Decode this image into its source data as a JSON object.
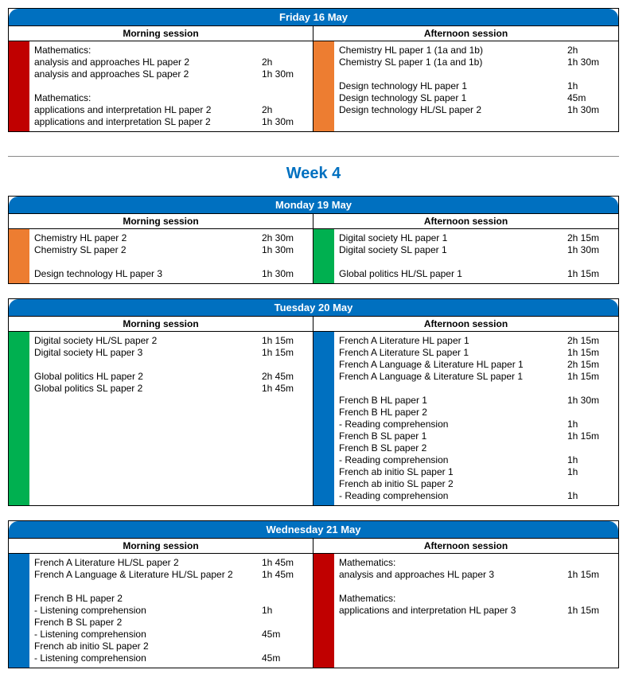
{
  "colors": {
    "header_bg": "#0070c0",
    "header_fg": "#ffffff",
    "red": "#c00000",
    "orange": "#ed7d31",
    "green": "#00b050",
    "blue": "#0070c0"
  },
  "labels": {
    "morning": "Morning session",
    "afternoon": "Afternoon session"
  },
  "week_title": "Week 4",
  "days": [
    {
      "id": "fri16",
      "title": "Friday 16 May",
      "morning": {
        "color": "red",
        "items": [
          {
            "text": "Mathematics:",
            "dur": ""
          },
          {
            "text": "analysis and approaches HL paper 2",
            "dur": "2h"
          },
          {
            "text": "analysis and approaches SL paper 2",
            "dur": "1h 30m"
          },
          {
            "text": "",
            "dur": ""
          },
          {
            "text": "Mathematics:",
            "dur": ""
          },
          {
            "text": "applications and interpretation HL paper 2",
            "dur": "2h"
          },
          {
            "text": "applications and interpretation SL paper 2",
            "dur": "1h 30m"
          }
        ]
      },
      "afternoon": {
        "color": "orange",
        "items": [
          {
            "text": "Chemistry HL paper 1 (1a and 1b)",
            "dur": "2h"
          },
          {
            "text": "Chemistry SL paper 1 (1a and 1b)",
            "dur": "1h 30m"
          },
          {
            "text": "",
            "dur": ""
          },
          {
            "text": "Design technology HL paper 1",
            "dur": "1h"
          },
          {
            "text": "Design technology SL paper 1",
            "dur": "45m"
          },
          {
            "text": "Design technology HL/SL paper 2",
            "dur": "1h 30m"
          }
        ]
      }
    },
    {
      "id": "mon19",
      "title": "Monday 19 May",
      "morning": {
        "color": "orange",
        "items": [
          {
            "text": "Chemistry HL paper 2",
            "dur": "2h 30m"
          },
          {
            "text": "Chemistry SL paper 2",
            "dur": "1h 30m"
          },
          {
            "text": "",
            "dur": ""
          },
          {
            "text": "Design technology HL paper 3",
            "dur": "1h 30m"
          }
        ]
      },
      "afternoon": {
        "color": "green",
        "items": [
          {
            "text": "Digital society HL paper 1",
            "dur": "2h 15m"
          },
          {
            "text": "Digital society SL paper 1",
            "dur": "1h 30m"
          },
          {
            "text": "",
            "dur": ""
          },
          {
            "text": "Global politics HL/SL paper 1",
            "dur": "1h 15m"
          }
        ]
      }
    },
    {
      "id": "tue20",
      "title": "Tuesday 20 May",
      "morning": {
        "color": "green",
        "items": [
          {
            "text": "Digital society HL/SL paper 2",
            "dur": "1h 15m"
          },
          {
            "text": "Digital society HL paper 3",
            "dur": "1h 15m"
          },
          {
            "text": "",
            "dur": ""
          },
          {
            "text": "Global politics HL paper 2",
            "dur": "2h 45m"
          },
          {
            "text": "Global politics SL paper 2",
            "dur": "1h 45m"
          }
        ]
      },
      "afternoon": {
        "color": "blue",
        "items": [
          {
            "text": "French A Literature HL paper 1",
            "dur": "2h 15m"
          },
          {
            "text": "French A Literature SL paper 1",
            "dur": "1h 15m"
          },
          {
            "text": "French A Language & Literature HL paper 1",
            "dur": "2h 15m"
          },
          {
            "text": "French A Language & Literature SL paper 1",
            "dur": "1h 15m"
          },
          {
            "text": "",
            "dur": ""
          },
          {
            "text": "French B HL paper 1",
            "dur": "1h 30m"
          },
          {
            "text": "French B HL paper 2",
            "dur": ""
          },
          {
            "text": "- Reading comprehension",
            "dur": "1h"
          },
          {
            "text": "French B SL paper 1",
            "dur": "1h 15m"
          },
          {
            "text": "French B SL paper 2",
            "dur": ""
          },
          {
            "text": "- Reading comprehension",
            "dur": "1h"
          },
          {
            "text": "French ab initio SL paper 1",
            "dur": "1h"
          },
          {
            "text": "French ab initio SL paper 2",
            "dur": ""
          },
          {
            "text": "- Reading comprehension",
            "dur": "1h"
          }
        ]
      }
    },
    {
      "id": "wed21",
      "title": "Wednesday 21 May",
      "morning": {
        "color": "blue",
        "items": [
          {
            "text": "French A Literature HL/SL paper 2",
            "dur": "1h 45m"
          },
          {
            "text": "French A Language & Literature HL/SL paper 2",
            "dur": "1h 45m"
          },
          {
            "text": "",
            "dur": ""
          },
          {
            "text": "French B HL paper 2",
            "dur": ""
          },
          {
            "text": "- Listening comprehension",
            "dur": "1h"
          },
          {
            "text": "French B SL paper 2",
            "dur": ""
          },
          {
            "text": "- Listening comprehension",
            "dur": "45m"
          },
          {
            "text": "French ab initio SL paper 2",
            "dur": ""
          },
          {
            "text": "- Listening comprehension",
            "dur": "45m"
          }
        ]
      },
      "afternoon": {
        "color": "red",
        "items": [
          {
            "text": "Mathematics:",
            "dur": ""
          },
          {
            "text": "analysis and approaches HL paper 3",
            "dur": "1h 15m"
          },
          {
            "text": "",
            "dur": ""
          },
          {
            "text": "Mathematics:",
            "dur": ""
          },
          {
            "text": "applications and interpretation HL paper 3",
            "dur": "1h 15m"
          }
        ]
      }
    }
  ]
}
